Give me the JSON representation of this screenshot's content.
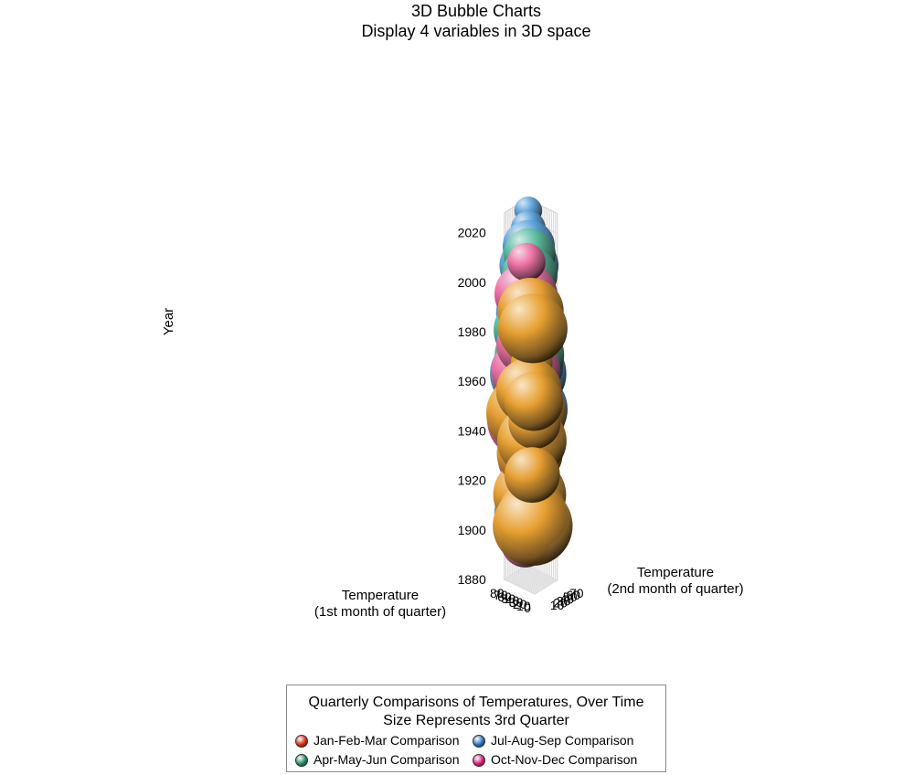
{
  "chart_data": {
    "type": "scatter",
    "subtype": "3d-bubble",
    "title": "3D Bubble Charts",
    "subtitle": "Display 4 variables in 3D space",
    "x_label": "Temperature\n(1st month of quarter)",
    "y_label": "Temperature\n(2nd month of quarter)",
    "z_label": "Year",
    "x_ticks": [
      0,
      10,
      20,
      30,
      40,
      50,
      60,
      70,
      80
    ],
    "y_ticks": [
      10,
      20,
      30,
      40,
      50,
      60,
      70
    ],
    "z_ticks": [
      1880,
      1900,
      1920,
      1940,
      1960,
      1980,
      2000,
      2020
    ],
    "xlim": [
      0,
      80
    ],
    "ylim": [
      5,
      75
    ],
    "zlim": [
      1880,
      2020
    ],
    "grid": true,
    "size_variable": "3rd month of quarter temperature",
    "legend": {
      "title_line1": "Quarterly Comparisons of Temperatures, Over Time",
      "title_line2": "Size Represents 3rd Quarter",
      "placement": "bottom"
    },
    "series": [
      {
        "name": "Jan-Feb-Mar Comparison",
        "color": "#e8a030",
        "legend_color": "#d42a10",
        "points": [
          {
            "x": 30,
            "y": 34,
            "z": 1903,
            "s": 46
          },
          {
            "x": 33,
            "y": 38,
            "z": 1907,
            "s": 40
          },
          {
            "x": 38,
            "y": 34,
            "z": 1915,
            "s": 42
          },
          {
            "x": 28,
            "y": 30,
            "z": 1924,
            "s": 32
          },
          {
            "x": 36,
            "y": 32,
            "z": 1932,
            "s": 38
          },
          {
            "x": 33,
            "y": 35,
            "z": 1937,
            "s": 40
          },
          {
            "x": 25,
            "y": 34,
            "z": 1945,
            "s": 30
          },
          {
            "x": 42,
            "y": 28,
            "z": 1948,
            "s": 46
          },
          {
            "x": 24,
            "y": 30,
            "z": 1954,
            "s": 34
          },
          {
            "x": 38,
            "y": 32,
            "z": 1957,
            "s": 38
          },
          {
            "x": 34,
            "y": 38,
            "z": 1962,
            "s": 6
          },
          {
            "x": 36,
            "y": 38,
            "z": 1968,
            "s": 24
          },
          {
            "x": 40,
            "y": 40,
            "z": 1978,
            "s": 32
          },
          {
            "x": 42,
            "y": 38,
            "z": 1982,
            "s": 34
          },
          {
            "x": 28,
            "y": 32,
            "z": 1983,
            "s": 40
          },
          {
            "x": 32,
            "y": 30,
            "z": 1990,
            "s": 38
          }
        ]
      },
      {
        "name": "Apr-May-Jun Comparison",
        "color": "#58b89a",
        "legend_color": "#1f8a5a",
        "points": [
          {
            "x": 55,
            "y": 54,
            "z": 1912,
            "s": 28
          },
          {
            "x": 58,
            "y": 52,
            "z": 1928,
            "s": 10
          },
          {
            "x": 56,
            "y": 54,
            "z": 1935,
            "s": 4
          },
          {
            "x": 57,
            "y": 56,
            "z": 1944,
            "s": 30
          },
          {
            "x": 58,
            "y": 57,
            "z": 1955,
            "s": 20
          },
          {
            "x": 60,
            "y": 58,
            "z": 1958,
            "s": 32
          },
          {
            "x": 59,
            "y": 58,
            "z": 1968,
            "s": 40
          },
          {
            "x": 60,
            "y": 56,
            "z": 1978,
            "s": 40
          },
          {
            "x": 58,
            "y": 56,
            "z": 1985,
            "s": 30
          },
          {
            "x": 57,
            "y": 55,
            "z": 1995,
            "s": 22
          },
          {
            "x": 60,
            "y": 60,
            "z": 2000,
            "s": 32
          },
          {
            "x": 62,
            "y": 62,
            "z": 2008,
            "s": 30
          }
        ]
      },
      {
        "name": "Jul-Aug-Sep Comparison",
        "color": "#5aa0d8",
        "legend_color": "#2a6fb8",
        "points": [
          {
            "x": 72,
            "y": 72,
            "z": 1902,
            "s": 40
          },
          {
            "x": 72,
            "y": 70,
            "z": 1908,
            "s": 34
          },
          {
            "x": 69,
            "y": 70,
            "z": 1920,
            "s": 22
          },
          {
            "x": 73,
            "y": 72,
            "z": 1928,
            "s": 34
          },
          {
            "x": 68,
            "y": 69,
            "z": 1932,
            "s": 18
          },
          {
            "x": 74,
            "y": 72,
            "z": 1934,
            "s": 6
          },
          {
            "x": 71,
            "y": 72,
            "z": 1944,
            "s": 44
          },
          {
            "x": 75,
            "y": 73,
            "z": 1958,
            "s": 44
          },
          {
            "x": 72,
            "y": 71,
            "z": 1962,
            "s": 40
          },
          {
            "x": 74,
            "y": 72,
            "z": 1975,
            "s": 36
          },
          {
            "x": 71,
            "y": 71,
            "z": 1983,
            "s": 38
          },
          {
            "x": 74,
            "y": 71,
            "z": 1990,
            "s": 34
          },
          {
            "x": 72,
            "y": 72,
            "z": 2002,
            "s": 34
          },
          {
            "x": 71,
            "y": 70,
            "z": 2010,
            "s": 30
          },
          {
            "x": 73,
            "y": 71,
            "z": 2017,
            "s": 20
          },
          {
            "x": 74,
            "y": 72,
            "z": 2024,
            "s": 16
          }
        ]
      },
      {
        "name": "Oct-Nov-Dec Comparison",
        "color": "#ee6fa4",
        "legend_color": "#d81b73",
        "points": [
          {
            "x": 59,
            "y": 45,
            "z": 1893,
            "s": 28
          },
          {
            "x": 57,
            "y": 47,
            "z": 1904,
            "s": 36
          },
          {
            "x": 52,
            "y": 40,
            "z": 1907,
            "s": 16
          },
          {
            "x": 50,
            "y": 40,
            "z": 1917,
            "s": 18
          },
          {
            "x": 58,
            "y": 46,
            "z": 1917,
            "s": 30
          },
          {
            "x": 55,
            "y": 47,
            "z": 1927,
            "s": 34
          },
          {
            "x": 60,
            "y": 48,
            "z": 1932,
            "s": 32
          },
          {
            "x": 62,
            "y": 49,
            "z": 1942,
            "s": 44
          },
          {
            "x": 56,
            "y": 48,
            "z": 1943,
            "s": 40
          },
          {
            "x": 59,
            "y": 47,
            "z": 1955,
            "s": 34
          },
          {
            "x": 60,
            "y": 48,
            "z": 1962,
            "s": 40
          },
          {
            "x": 63,
            "y": 52,
            "z": 1960,
            "s": 20
          },
          {
            "x": 58,
            "y": 46,
            "z": 1973,
            "s": 34
          },
          {
            "x": 60,
            "y": 48,
            "z": 1978,
            "s": 30
          },
          {
            "x": 58,
            "y": 47,
            "z": 1985,
            "s": 30
          },
          {
            "x": 61,
            "y": 49,
            "z": 1993,
            "s": 36
          },
          {
            "x": 60,
            "y": 50,
            "z": 2006,
            "s": 22
          }
        ]
      }
    ]
  }
}
